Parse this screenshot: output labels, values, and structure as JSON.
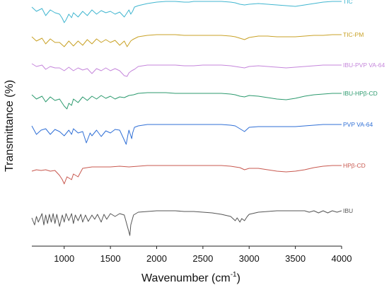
{
  "chart_data": {
    "type": "line",
    "title": "",
    "xlabel": "Wavenumber (cm",
    "xlabel_sup": "-1",
    "xlabel_end": ")",
    "ylabel": "Transmittance (%)",
    "xlim": [
      650,
      4000
    ],
    "xticks": [
      "1000",
      "1500",
      "2000",
      "2500",
      "3000",
      "3500",
      "4000"
    ],
    "y_tick_labels": false,
    "series": [
      {
        "name": "TIC",
        "color": "#41b6d0",
        "x": [
          650,
          700,
          760,
          800,
          850,
          900,
          950,
          980,
          1000,
          1020,
          1050,
          1080,
          1100,
          1150,
          1200,
          1250,
          1300,
          1350,
          1400,
          1450,
          1500,
          1550,
          1600,
          1650,
          1680,
          1700,
          1720,
          1740,
          1760,
          1800,
          1900,
          2000,
          2100,
          2200,
          2300,
          2350,
          2400,
          2500,
          2600,
          2700,
          2800,
          2850,
          2900,
          2950,
          3000,
          3100,
          3200,
          3300,
          3400,
          3500,
          3600,
          3700,
          3800,
          3900,
          4000
        ],
        "y": [
          30,
          24,
          28,
          18,
          26,
          22,
          20,
          14,
          8,
          12,
          20,
          15,
          22,
          16,
          24,
          18,
          26,
          20,
          25,
          22,
          24,
          20,
          23,
          16,
          22,
          26,
          20,
          24,
          30,
          32,
          35,
          37,
          38,
          38,
          37,
          37,
          38,
          38,
          38,
          38,
          37,
          36,
          34,
          33,
          34,
          35,
          34,
          33,
          32,
          31,
          33,
          35,
          37,
          38,
          38
        ]
      },
      {
        "name": "TIC-PM",
        "color": "#c9a227",
        "x": [
          650,
          700,
          760,
          800,
          850,
          900,
          950,
          1000,
          1050,
          1100,
          1150,
          1200,
          1250,
          1300,
          1350,
          1400,
          1450,
          1500,
          1550,
          1600,
          1650,
          1680,
          1700,
          1720,
          1740,
          1800,
          1900,
          2000,
          2100,
          2200,
          2300,
          2400,
          2500,
          2600,
          2700,
          2800,
          2850,
          2900,
          2950,
          3000,
          3100,
          3200,
          3300,
          3400,
          3500,
          3600,
          3700,
          3800,
          3900,
          4000
        ],
        "y": [
          30,
          24,
          28,
          20,
          27,
          22,
          22,
          16,
          24,
          17,
          24,
          18,
          26,
          20,
          27,
          22,
          26,
          22,
          25,
          18,
          24,
          16,
          20,
          24,
          26,
          30,
          32,
          33,
          33,
          33,
          32,
          32,
          32,
          32,
          32,
          31,
          30,
          28,
          26,
          29,
          31,
          31,
          30,
          30,
          30,
          31,
          32,
          32,
          33,
          33
        ]
      },
      {
        "name": "IBU-PVP VA-64",
        "color": "#c586db",
        "x": [
          650,
          700,
          760,
          800,
          850,
          900,
          950,
          1000,
          1050,
          1100,
          1150,
          1200,
          1250,
          1300,
          1350,
          1400,
          1450,
          1500,
          1550,
          1600,
          1650,
          1680,
          1700,
          1730,
          1760,
          1800,
          1900,
          2000,
          2100,
          2200,
          2300,
          2400,
          2500,
          2600,
          2700,
          2800,
          2850,
          2900,
          2950,
          3000,
          3100,
          3200,
          3300,
          3400,
          3500,
          3600,
          3700,
          3800,
          3900,
          4000
        ],
        "y": [
          32,
          28,
          30,
          24,
          28,
          26,
          26,
          22,
          27,
          22,
          26,
          23,
          25,
          18,
          25,
          22,
          26,
          22,
          25,
          22,
          15,
          14,
          19,
          22,
          24,
          28,
          30,
          30,
          30,
          30,
          29,
          29,
          30,
          30,
          30,
          29,
          28,
          27,
          26,
          28,
          29,
          28,
          27,
          26,
          27,
          28,
          29,
          30,
          30,
          30
        ]
      },
      {
        "name": "IBU-HPβ-CD",
        "color": "#2c9a6e",
        "x": [
          650,
          700,
          760,
          800,
          850,
          900,
          950,
          1000,
          1030,
          1050,
          1080,
          1100,
          1150,
          1200,
          1250,
          1300,
          1350,
          1400,
          1450,
          1500,
          1550,
          1600,
          1650,
          1700,
          1750,
          1800,
          1900,
          2000,
          2100,
          2200,
          2300,
          2400,
          2500,
          2600,
          2700,
          2800,
          2850,
          2900,
          2950,
          3000,
          3100,
          3200,
          3300,
          3400,
          3500,
          3600,
          3700,
          3800,
          3900,
          4000
        ],
        "y": [
          28,
          22,
          26,
          18,
          25,
          20,
          22,
          12,
          8,
          16,
          13,
          22,
          17,
          25,
          20,
          26,
          22,
          27,
          23,
          26,
          22,
          25,
          24,
          27,
          28,
          30,
          31,
          31,
          31,
          30,
          30,
          30,
          30,
          30,
          30,
          29,
          28,
          26,
          25,
          27,
          26,
          24,
          22,
          21,
          23,
          26,
          28,
          29,
          30,
          30
        ]
      },
      {
        "name": "PVP VA-64",
        "color": "#2f6fd6",
        "x": [
          650,
          700,
          750,
          800,
          850,
          900,
          950,
          1000,
          1050,
          1080,
          1100,
          1150,
          1200,
          1240,
          1280,
          1300,
          1350,
          1400,
          1450,
          1500,
          1550,
          1600,
          1650,
          1670,
          1690,
          1700,
          1730,
          1740,
          1760,
          1800,
          1900,
          2000,
          2100,
          2200,
          2300,
          2400,
          2500,
          2600,
          2700,
          2800,
          2850,
          2900,
          2950,
          3000,
          3100,
          3200,
          3300,
          3400,
          3500,
          3600,
          3700,
          3800,
          3900,
          4000
        ],
        "y": [
          32,
          20,
          26,
          28,
          20,
          27,
          24,
          18,
          26,
          20,
          28,
          22,
          24,
          8,
          22,
          18,
          26,
          17,
          25,
          22,
          27,
          26,
          12,
          6,
          20,
          26,
          14,
          22,
          30,
          32,
          34,
          34,
          34,
          34,
          34,
          34,
          34,
          34,
          34,
          33,
          32,
          28,
          24,
          30,
          31,
          31,
          31,
          31,
          31,
          32,
          33,
          34,
          34,
          34
        ]
      },
      {
        "name": "HPβ-CD",
        "color": "#c8584f",
        "x": [
          650,
          700,
          750,
          800,
          850,
          900,
          950,
          980,
          1000,
          1030,
          1080,
          1100,
          1150,
          1200,
          1300,
          1400,
          1500,
          1600,
          1700,
          1800,
          1900,
          2000,
          2100,
          2200,
          2300,
          2400,
          2500,
          2600,
          2700,
          2800,
          2850,
          2900,
          2950,
          3000,
          3100,
          3200,
          3300,
          3400,
          3500,
          3600,
          3700,
          3800,
          3900,
          4000
        ],
        "y": [
          26,
          28,
          27,
          28,
          26,
          27,
          20,
          14,
          8,
          18,
          14,
          22,
          18,
          30,
          32,
          32,
          32,
          33,
          32,
          33,
          34,
          34,
          34,
          34,
          34,
          34,
          34,
          34,
          34,
          33,
          32,
          31,
          28,
          30,
          30,
          28,
          26,
          25,
          26,
          28,
          31,
          33,
          34,
          34
        ]
      },
      {
        "name": "IBU",
        "color": "#555555",
        "x": [
          650,
          680,
          700,
          720,
          760,
          780,
          800,
          820,
          840,
          860,
          880,
          900,
          920,
          950,
          980,
          1000,
          1020,
          1050,
          1080,
          1100,
          1120,
          1150,
          1180,
          1200,
          1230,
          1260,
          1300,
          1330,
          1360,
          1400,
          1430,
          1460,
          1500,
          1550,
          1600,
          1650,
          1700,
          1710,
          1720,
          1750,
          1800,
          1900,
          2000,
          2100,
          2200,
          2300,
          2400,
          2500,
          2600,
          2700,
          2800,
          2850,
          2870,
          2900,
          2920,
          2950,
          2980,
          3000,
          3100,
          3200,
          3300,
          3400,
          3500,
          3600,
          3650,
          3700,
          3750,
          3800,
          3850,
          3900,
          3950,
          4000
        ],
        "y": [
          30,
          20,
          32,
          24,
          36,
          20,
          34,
          22,
          35,
          24,
          36,
          22,
          35,
          18,
          34,
          24,
          36,
          26,
          36,
          22,
          34,
          26,
          35,
          24,
          34,
          25,
          34,
          28,
          35,
          24,
          35,
          28,
          36,
          32,
          36,
          34,
          10,
          5,
          20,
          34,
          38,
          39,
          40,
          40,
          40,
          39,
          39,
          38,
          37,
          35,
          32,
          26,
          30,
          24,
          29,
          26,
          32,
          35,
          38,
          39,
          40,
          40,
          40,
          40,
          38,
          40,
          37,
          40,
          37,
          40,
          38,
          40
        ]
      }
    ]
  }
}
